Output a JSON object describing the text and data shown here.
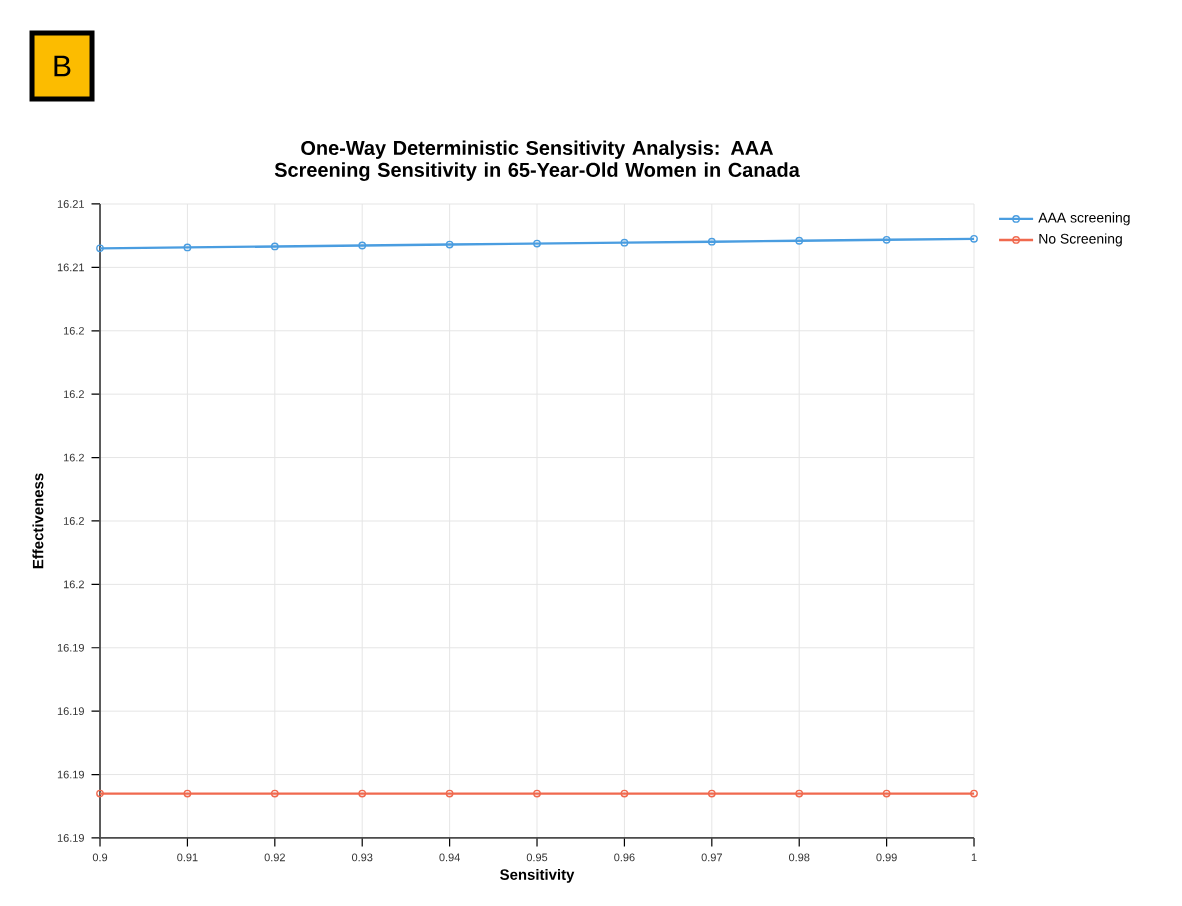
{
  "chart_data": {
    "type": "line",
    "title": "One-Way Deterministic Sensitivity Analysis: AAA Screening Sensitivity in 65-Year-Old Women in Canada",
    "annotations": [
      "B"
    ],
    "xlabel": "Sensitivity",
    "ylabel": "Effectiveness",
    "x": [
      0.9,
      0.91,
      0.92,
      0.93,
      0.94,
      0.95,
      0.96,
      0.97,
      0.98,
      0.99,
      1
    ],
    "series": [
      {
        "name": "AAA screening",
        "color": "#4a9de0",
        "values": [
          16.2066,
          16.20663,
          16.20666,
          16.20669,
          16.20672,
          16.20675,
          16.20678,
          16.20681,
          16.20684,
          16.20687,
          16.2069
        ]
      },
      {
        "name": "No Screening",
        "color": "#f0694e",
        "values": [
          16.1894,
          16.1894,
          16.1894,
          16.1894,
          16.1894,
          16.1894,
          16.1894,
          16.1894,
          16.1894,
          16.1894,
          16.1894
        ]
      }
    ],
    "xlim": [
      0.9,
      1
    ],
    "xticks": [
      0.9,
      0.91,
      0.92,
      0.93,
      0.94,
      0.95,
      0.96,
      0.97,
      0.98,
      0.99,
      1
    ],
    "ylim": [
      16.188,
      16.208
    ],
    "yticks": [
      {
        "value": 16.188,
        "label": "16.19"
      },
      {
        "value": 16.19,
        "label": "16.19"
      },
      {
        "value": 16.192,
        "label": "16.19"
      },
      {
        "value": 16.194,
        "label": "16.19"
      },
      {
        "value": 16.196,
        "label": "16.2"
      },
      {
        "value": 16.198,
        "label": "16.2"
      },
      {
        "value": 16.2,
        "label": "16.2"
      },
      {
        "value": 16.202,
        "label": "16.2"
      },
      {
        "value": 16.204,
        "label": "16.2"
      },
      {
        "value": 16.206,
        "label": "16.21"
      },
      {
        "value": 16.208,
        "label": "16.21"
      }
    ],
    "grid": true,
    "legend": "top right",
    "marker": "circle",
    "line_style": "solid"
  }
}
